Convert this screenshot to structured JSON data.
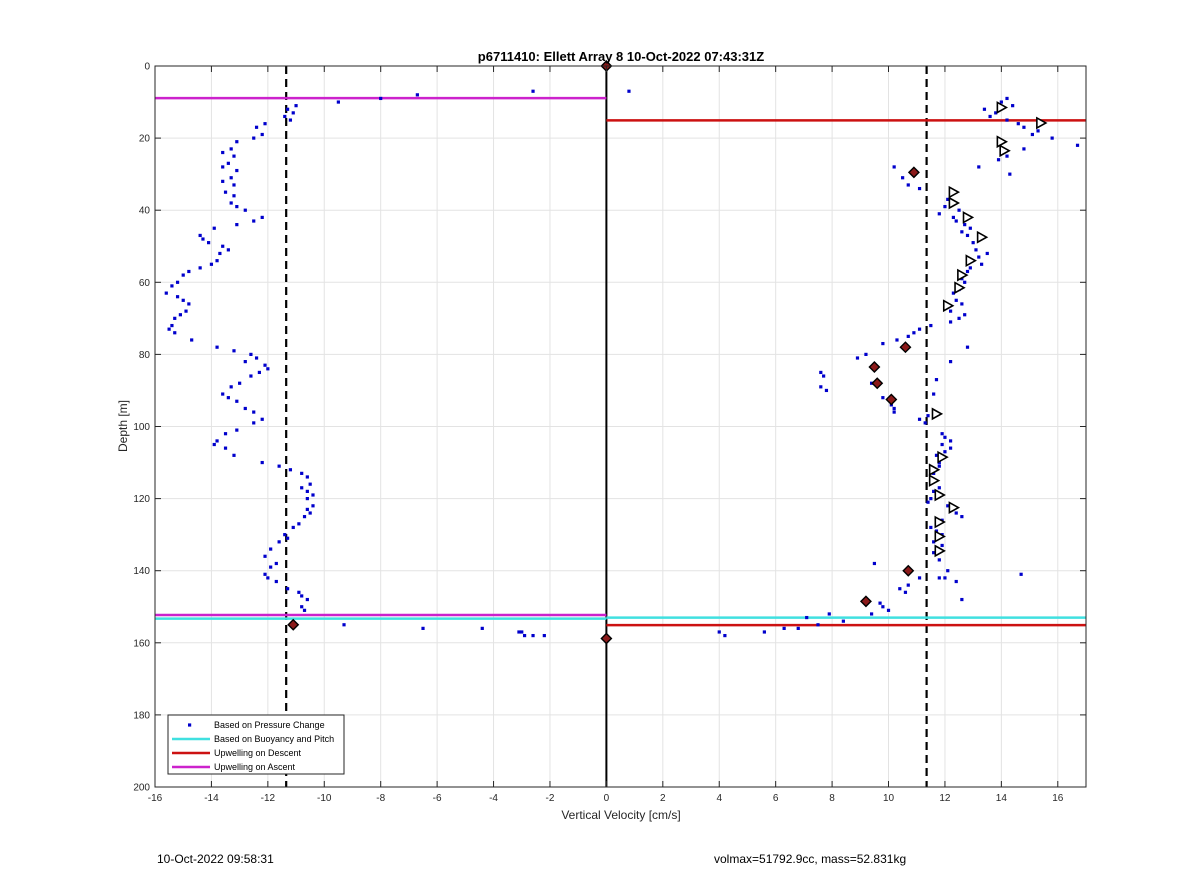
{
  "footer": {
    "timestamp": "10-Oct-2022 09:58:31",
    "info": "volmax=51792.9cc, mass=52.831kg"
  },
  "chart_data": {
    "type": "scatter",
    "title": "p6711410: Ellett Array 8 10-Oct-2022 07:43:31Z",
    "xlabel": "Vertical Velocity [cm/s]",
    "ylabel": "Depth [m]",
    "xlim": [
      -16,
      17
    ],
    "ylim": [
      0,
      200
    ],
    "y_reversed": true,
    "grid": true,
    "xticks": [
      -16,
      -14,
      -12,
      -10,
      -8,
      -6,
      -4,
      -2,
      0,
      2,
      4,
      6,
      8,
      10,
      12,
      14,
      16
    ],
    "yticks": [
      0,
      20,
      40,
      60,
      80,
      100,
      120,
      140,
      160,
      180,
      200
    ],
    "legend_position": "bottom-left",
    "colors": {
      "pressure": "#0000cc",
      "buoyancy": "#40e0e0",
      "descent": "#cc1111",
      "ascent": "#cc22cc",
      "reference": "#000000",
      "marker_fill": "#8b1a1a"
    },
    "legend": [
      {
        "label": "Based on Pressure Change",
        "kind": "dot",
        "color": "#0000cc"
      },
      {
        "label": "Based on Buoyancy and Pitch",
        "kind": "line",
        "color": "#40e0e0"
      },
      {
        "label": "Upwelling on Descent",
        "kind": "line",
        "color": "#cc1111"
      },
      {
        "label": "Upwelling on Ascent",
        "kind": "line",
        "color": "#cc22cc"
      }
    ],
    "reference_lines": {
      "zero_x": 0,
      "dashed_x": [
        -11.35,
        11.35
      ]
    },
    "series": [
      {
        "name": "Based on Pressure Change",
        "points": [
          [
            -11.0,
            11
          ],
          [
            -11.3,
            12
          ],
          [
            -11.1,
            13
          ],
          [
            -11.4,
            14
          ],
          [
            -11.2,
            15
          ],
          [
            -12.1,
            16
          ],
          [
            -12.4,
            17
          ],
          [
            -12.2,
            19
          ],
          [
            -12.5,
            20
          ],
          [
            -13.1,
            21
          ],
          [
            -13.3,
            23
          ],
          [
            -13.6,
            24
          ],
          [
            -13.2,
            25
          ],
          [
            -13.4,
            27
          ],
          [
            -13.6,
            28
          ],
          [
            -13.1,
            29
          ],
          [
            -13.3,
            31
          ],
          [
            -13.6,
            32
          ],
          [
            -13.2,
            33
          ],
          [
            -13.5,
            35
          ],
          [
            -13.2,
            36
          ],
          [
            -13.3,
            38
          ],
          [
            -13.1,
            39
          ],
          [
            -12.8,
            40
          ],
          [
            -12.2,
            42
          ],
          [
            -12.5,
            43
          ],
          [
            -13.1,
            44
          ],
          [
            -13.9,
            45
          ],
          [
            -14.4,
            47
          ],
          [
            -14.3,
            48
          ],
          [
            -14.1,
            49
          ],
          [
            -13.6,
            50
          ],
          [
            -13.4,
            51
          ],
          [
            -13.7,
            52
          ],
          [
            -13.8,
            54
          ],
          [
            -14.0,
            55
          ],
          [
            -14.4,
            56
          ],
          [
            -14.8,
            57
          ],
          [
            -15.0,
            58
          ],
          [
            -15.2,
            60
          ],
          [
            -15.4,
            61
          ],
          [
            -15.6,
            63
          ],
          [
            -15.2,
            64
          ],
          [
            -15.0,
            65
          ],
          [
            -14.8,
            66
          ],
          [
            -14.9,
            68
          ],
          [
            -15.1,
            69
          ],
          [
            -15.3,
            70
          ],
          [
            -15.4,
            72
          ],
          [
            -15.5,
            73
          ],
          [
            -15.3,
            74
          ],
          [
            -14.7,
            76
          ],
          [
            -13.8,
            78
          ],
          [
            -13.2,
            79
          ],
          [
            -12.6,
            80
          ],
          [
            -12.4,
            81
          ],
          [
            -12.8,
            82
          ],
          [
            -12.1,
            83
          ],
          [
            -12.0,
            84
          ],
          [
            -12.3,
            85
          ],
          [
            -12.6,
            86
          ],
          [
            -13.0,
            88
          ],
          [
            -13.3,
            89
          ],
          [
            -13.6,
            91
          ],
          [
            -13.4,
            92
          ],
          [
            -13.1,
            93
          ],
          [
            -12.8,
            95
          ],
          [
            -12.5,
            96
          ],
          [
            -12.2,
            98
          ],
          [
            -12.5,
            99
          ],
          [
            -13.1,
            101
          ],
          [
            -13.5,
            102
          ],
          [
            -13.8,
            104
          ],
          [
            -13.9,
            105
          ],
          [
            -13.5,
            106
          ],
          [
            -13.2,
            108
          ],
          [
            -12.2,
            110
          ],
          [
            -11.6,
            111
          ],
          [
            -11.2,
            112
          ],
          [
            -10.8,
            113
          ],
          [
            -10.6,
            114
          ],
          [
            -10.5,
            116
          ],
          [
            -10.8,
            117
          ],
          [
            -10.6,
            118
          ],
          [
            -10.4,
            119
          ],
          [
            -10.6,
            120
          ],
          [
            -10.4,
            122
          ],
          [
            -10.6,
            123
          ],
          [
            -10.5,
            124
          ],
          [
            -10.7,
            125
          ],
          [
            -10.9,
            127
          ],
          [
            -11.1,
            128
          ],
          [
            -11.4,
            130
          ],
          [
            -11.3,
            131
          ],
          [
            -11.6,
            132
          ],
          [
            -11.9,
            134
          ],
          [
            -12.1,
            136
          ],
          [
            -11.7,
            138
          ],
          [
            -11.9,
            139
          ],
          [
            -12.1,
            141
          ],
          [
            -12.0,
            142
          ],
          [
            -11.7,
            143
          ],
          [
            -11.3,
            145
          ],
          [
            -10.9,
            146
          ],
          [
            -10.8,
            147
          ],
          [
            -10.6,
            148
          ],
          [
            -10.8,
            150
          ],
          [
            -10.7,
            151
          ],
          [
            -9.5,
            10
          ],
          [
            -8.0,
            9
          ],
          [
            -6.7,
            8
          ],
          [
            -2.6,
            7
          ],
          [
            0.8,
            7
          ],
          [
            -9.3,
            155
          ],
          [
            -6.5,
            156
          ],
          [
            -4.4,
            156
          ],
          [
            -3.0,
            157
          ],
          [
            -2.9,
            158
          ],
          [
            -2.6,
            158
          ],
          [
            -2.2,
            158
          ],
          [
            -3.1,
            157
          ],
          [
            14.2,
            9
          ],
          [
            14.0,
            10
          ],
          [
            14.4,
            11
          ],
          [
            13.4,
            12
          ],
          [
            13.8,
            13
          ],
          [
            13.6,
            14
          ],
          [
            14.2,
            15
          ],
          [
            14.6,
            16
          ],
          [
            14.8,
            17
          ],
          [
            15.3,
            18
          ],
          [
            15.1,
            19
          ],
          [
            15.8,
            20
          ],
          [
            16.7,
            22
          ],
          [
            14.8,
            23
          ],
          [
            14.2,
            25
          ],
          [
            13.9,
            26
          ],
          [
            13.2,
            28
          ],
          [
            14.3,
            30
          ],
          [
            10.2,
            28
          ],
          [
            10.5,
            31
          ],
          [
            10.7,
            33
          ],
          [
            11.1,
            34
          ],
          [
            12.3,
            35
          ],
          [
            12.1,
            37
          ],
          [
            12.0,
            39
          ],
          [
            12.5,
            40
          ],
          [
            11.8,
            41
          ],
          [
            12.3,
            42
          ],
          [
            12.4,
            43
          ],
          [
            12.7,
            44
          ],
          [
            12.9,
            45
          ],
          [
            12.6,
            46
          ],
          [
            12.8,
            47
          ],
          [
            13.0,
            49
          ],
          [
            13.1,
            51
          ],
          [
            13.5,
            52
          ],
          [
            13.2,
            53
          ],
          [
            13.3,
            55
          ],
          [
            12.9,
            56
          ],
          [
            12.8,
            57
          ],
          [
            12.6,
            59
          ],
          [
            12.7,
            60
          ],
          [
            12.5,
            62
          ],
          [
            12.3,
            63
          ],
          [
            12.4,
            65
          ],
          [
            12.6,
            66
          ],
          [
            12.2,
            68
          ],
          [
            12.7,
            69
          ],
          [
            12.5,
            70
          ],
          [
            12.2,
            71
          ],
          [
            11.5,
            72
          ],
          [
            11.1,
            73
          ],
          [
            10.9,
            74
          ],
          [
            10.7,
            75
          ],
          [
            10.3,
            76
          ],
          [
            9.8,
            77
          ],
          [
            12.8,
            78
          ],
          [
            9.2,
            80
          ],
          [
            8.9,
            81
          ],
          [
            12.2,
            82
          ],
          [
            9.5,
            83
          ],
          [
            7.6,
            85
          ],
          [
            7.7,
            86
          ],
          [
            9.4,
            88
          ],
          [
            11.7,
            87
          ],
          [
            7.6,
            89
          ],
          [
            7.8,
            90
          ],
          [
            11.6,
            91
          ],
          [
            9.8,
            92
          ],
          [
            10.1,
            94
          ],
          [
            10.2,
            95
          ],
          [
            10.2,
            96
          ],
          [
            11.4,
            97
          ],
          [
            11.1,
            98
          ],
          [
            11.3,
            99
          ],
          [
            11.9,
            102
          ],
          [
            12.0,
            103
          ],
          [
            12.2,
            104
          ],
          [
            11.9,
            105
          ],
          [
            12.2,
            106
          ],
          [
            12.0,
            107
          ],
          [
            11.7,
            108
          ],
          [
            11.8,
            110
          ],
          [
            11.8,
            111
          ],
          [
            11.6,
            113
          ],
          [
            11.5,
            115
          ],
          [
            11.8,
            117
          ],
          [
            11.6,
            118
          ],
          [
            11.5,
            120
          ],
          [
            11.4,
            121
          ],
          [
            12.1,
            122
          ],
          [
            12.4,
            124
          ],
          [
            12.6,
            125
          ],
          [
            11.9,
            126
          ],
          [
            11.5,
            128
          ],
          [
            11.7,
            129
          ],
          [
            11.9,
            130
          ],
          [
            11.7,
            131
          ],
          [
            11.6,
            132
          ],
          [
            11.9,
            133
          ],
          [
            11.6,
            135
          ],
          [
            11.8,
            137
          ],
          [
            12.1,
            140
          ],
          [
            12.0,
            142
          ],
          [
            11.1,
            142
          ],
          [
            12.4,
            143
          ],
          [
            10.7,
            144
          ],
          [
            10.4,
            145
          ],
          [
            10.6,
            146
          ],
          [
            12.6,
            148
          ],
          [
            9.7,
            149
          ],
          [
            9.8,
            150
          ],
          [
            10.0,
            151
          ],
          [
            9.4,
            152
          ],
          [
            7.9,
            152
          ],
          [
            7.1,
            153
          ],
          [
            8.4,
            154
          ],
          [
            7.5,
            155
          ],
          [
            6.8,
            156
          ],
          [
            6.3,
            156
          ],
          [
            5.6,
            157
          ],
          [
            4.2,
            158
          ],
          [
            4.0,
            157
          ],
          [
            14.7,
            141
          ],
          [
            9.5,
            138
          ],
          [
            11.8,
            142
          ]
        ]
      }
    ],
    "lines": [
      {
        "name": "Based on Buoyancy and Pitch",
        "color": "#40e0e0",
        "segments": [
          {
            "x": [
              -16,
              0
            ],
            "depth": 153.3
          },
          {
            "x": [
              0,
              17
            ],
            "depth": 153.0
          }
        ]
      },
      {
        "name": "Upwelling on Descent",
        "color": "#cc1111",
        "segments": [
          {
            "x": [
              0,
              17
            ],
            "depth": 15.1
          },
          {
            "x": [
              0,
              17
            ],
            "depth": 155.1
          }
        ]
      },
      {
        "name": "Upwelling on Ascent",
        "color": "#cc22cc",
        "segments": [
          {
            "x": [
              -16,
              0
            ],
            "depth": 8.9
          },
          {
            "x": [
              -16,
              0
            ],
            "depth": 152.3
          }
        ]
      }
    ],
    "triangle_markers": [
      [
        14.0,
        11.5
      ],
      [
        15.4,
        15.8
      ],
      [
        14.0,
        21.0
      ],
      [
        14.1,
        23.5
      ],
      [
        12.3,
        35.0
      ],
      [
        12.3,
        38.0
      ],
      [
        12.8,
        42.0
      ],
      [
        13.3,
        47.5
      ],
      [
        12.9,
        54.0
      ],
      [
        12.6,
        58.0
      ],
      [
        12.5,
        61.5
      ],
      [
        12.1,
        66.5
      ],
      [
        11.7,
        96.5
      ],
      [
        11.9,
        108.5
      ],
      [
        11.6,
        112.0
      ],
      [
        11.6,
        115.0
      ],
      [
        11.8,
        119.0
      ],
      [
        12.3,
        122.5
      ],
      [
        11.8,
        126.5
      ],
      [
        11.8,
        130.5
      ],
      [
        11.8,
        134.5
      ]
    ],
    "star_markers": [
      [
        0.0,
        0.0
      ],
      [
        10.9,
        29.5
      ],
      [
        10.6,
        78.0
      ],
      [
        9.5,
        83.5
      ],
      [
        9.6,
        88.0
      ],
      [
        10.1,
        92.5
      ],
      [
        10.7,
        140.0
      ],
      [
        9.2,
        148.5
      ],
      [
        -11.1,
        155.0
      ],
      [
        0.0,
        158.8
      ]
    ]
  }
}
